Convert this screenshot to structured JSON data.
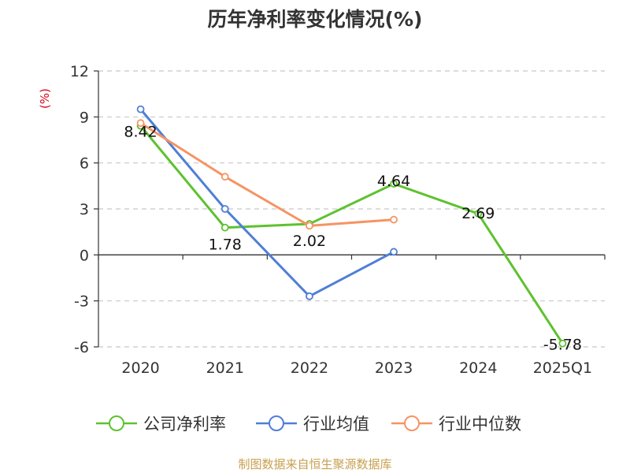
{
  "chart_data": {
    "type": "line",
    "title": "历年净利率变化情况(%)",
    "ylabel": "(%)",
    "xlabel": "",
    "categories": [
      "2020",
      "2021",
      "2022",
      "2023",
      "2024",
      "2025Q1"
    ],
    "ylim": [
      -6,
      12
    ],
    "yticks": [
      12,
      9,
      6,
      3,
      0,
      -3,
      -6
    ],
    "ytick_labels": [
      "12",
      "9",
      "6",
      "3",
      "0",
      "-3",
      "-6"
    ],
    "grid": true,
    "legend_position": "bottom",
    "series": [
      {
        "name": "公司净利率",
        "color": "#5dc22f",
        "values": [
          8.42,
          1.78,
          2.02,
          4.64,
          2.69,
          -5.78
        ],
        "labels": [
          "8.42",
          "1.78",
          "2.02",
          "4.64",
          "2.69",
          "-5.78"
        ]
      },
      {
        "name": "行业均值",
        "color": "#4f7fd6",
        "values": [
          9.5,
          3.0,
          -2.7,
          0.2,
          null,
          null
        ]
      },
      {
        "name": "行业中位数",
        "color": "#f59464",
        "values": [
          8.6,
          5.1,
          1.9,
          2.3,
          null,
          null
        ]
      }
    ]
  },
  "footer": {
    "source": "制图数据来自恒生聚源数据库"
  }
}
